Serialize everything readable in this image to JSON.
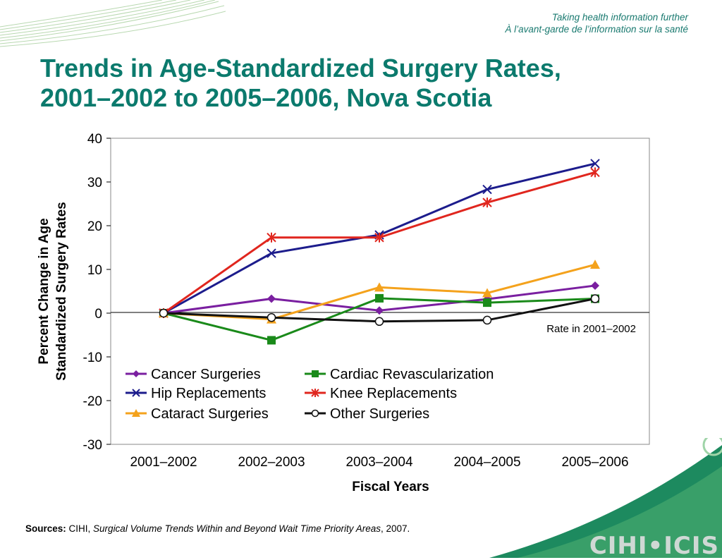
{
  "header": {
    "tagline_en": "Taking health information further",
    "tagline_fr": "À l’avant-garde de l’information sur la santé"
  },
  "title": {
    "line1": "Trends in Age-Standardized Surgery Rates,",
    "line2": "2001–2002 to 2005–2006, Nova Scotia"
  },
  "chart_data": {
    "type": "line",
    "categories": [
      "2001–2002",
      "2002–2003",
      "2003–2004",
      "2004–2005",
      "2005–2006"
    ],
    "xlabel": "Fiscal Years",
    "ylabel_line1": "Percent Change in Age",
    "ylabel_line2": "Standardized Surgery Rates",
    "ylim": [
      -30,
      40
    ],
    "yticks": [
      40,
      30,
      20,
      10,
      0,
      -10,
      -20,
      -30
    ],
    "grid": false,
    "baseline_label": "Rate in 2001–2002",
    "legend_position": "bottom-left inside",
    "series": [
      {
        "name": "Cancer Surgeries",
        "color": "#7a1fa0",
        "marker": "diamond",
        "values": [
          0,
          3.3,
          0.6,
          3.2,
          6.3
        ]
      },
      {
        "name": "Cardiac Revascularization",
        "color": "#1a8a1a",
        "marker": "square",
        "values": [
          0,
          -6.2,
          3.4,
          2.4,
          3.3
        ]
      },
      {
        "name": "Hip Replacements",
        "color": "#1c1c8c",
        "marker": "x",
        "values": [
          0,
          13.7,
          17.9,
          28.3,
          34.2
        ]
      },
      {
        "name": "Knee Replacements",
        "color": "#e0261e",
        "marker": "star",
        "values": [
          0,
          17.3,
          17.3,
          25.3,
          32.2
        ]
      },
      {
        "name": "Cataract Surgeries",
        "color": "#f4a21c",
        "marker": "triangle",
        "values": [
          0,
          -1.4,
          5.9,
          4.6,
          11.1
        ]
      },
      {
        "name": "Other Surgeries",
        "color": "#111111",
        "marker": "circle",
        "values": [
          0,
          -1.0,
          -1.9,
          -1.6,
          3.3
        ]
      }
    ]
  },
  "sources": {
    "label": "Sources:",
    "org": " CIHI, ",
    "pub": "Surgical Volume Trends Within and Beyond Wait Time Priority Areas",
    "year": ", 2007."
  },
  "brand": {
    "text": "CIHI•ICIS"
  }
}
